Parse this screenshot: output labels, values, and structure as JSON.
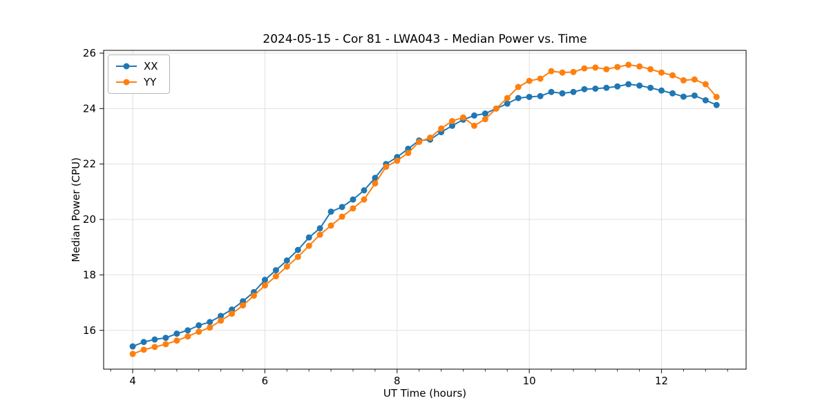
{
  "figure": {
    "background": "#ffffff"
  },
  "styles": {
    "grid_color": "#e0e0e0",
    "spine_color": "#000000",
    "tick_color": "#333333",
    "text_color": "#000000",
    "series_colors": [
      "#1f77b4",
      "#ff7f0e"
    ]
  },
  "legend": {
    "position": "upper-left",
    "entries": [
      "XX",
      "YY"
    ]
  },
  "chart_data": {
    "type": "line",
    "title": "2024-05-15 - Cor 81 - LWA043 - Median Power vs. Time",
    "xlabel": "UT Time (hours)",
    "ylabel": "Median Power (CPU)",
    "xlim": [
      3.56,
      13.28
    ],
    "ylim": [
      14.6,
      26.1
    ],
    "xticks": [
      4,
      6,
      8,
      10,
      12
    ],
    "yticks": [
      16,
      18,
      20,
      22,
      24,
      26
    ],
    "x_minor_step": 0.33333,
    "grid": true,
    "legend_position": "upper-left",
    "marker": "o",
    "x": [
      4.0,
      4.167,
      4.333,
      4.5,
      4.667,
      4.833,
      5.0,
      5.167,
      5.333,
      5.5,
      5.667,
      5.833,
      6.0,
      6.167,
      6.333,
      6.5,
      6.667,
      6.833,
      7.0,
      7.167,
      7.333,
      7.5,
      7.667,
      7.833,
      8.0,
      8.167,
      8.333,
      8.5,
      8.667,
      8.833,
      9.0,
      9.167,
      9.333,
      9.5,
      9.667,
      9.833,
      10.0,
      10.167,
      10.333,
      10.5,
      10.667,
      10.833,
      11.0,
      11.167,
      11.333,
      11.5,
      11.667,
      11.833,
      12.0,
      12.167,
      12.333,
      12.5,
      12.667,
      12.833
    ],
    "series": [
      {
        "name": "XX",
        "color": "#1f77b4",
        "values": [
          15.42,
          15.58,
          15.67,
          15.73,
          15.88,
          16.0,
          16.18,
          16.3,
          16.52,
          16.75,
          17.05,
          17.38,
          17.82,
          18.17,
          18.52,
          18.9,
          19.35,
          19.68,
          20.28,
          20.45,
          20.72,
          21.05,
          21.5,
          22.0,
          22.25,
          22.55,
          22.85,
          22.88,
          23.15,
          23.38,
          23.6,
          23.75,
          23.82,
          24.0,
          24.18,
          24.38,
          24.42,
          24.45,
          24.6,
          24.55,
          24.6,
          24.7,
          24.72,
          24.75,
          24.8,
          24.88,
          24.83,
          24.75,
          24.65,
          24.55,
          24.43,
          24.47,
          24.3,
          24.13
        ]
      },
      {
        "name": "YY",
        "color": "#ff7f0e",
        "values": [
          15.15,
          15.3,
          15.4,
          15.5,
          15.63,
          15.78,
          15.95,
          16.1,
          16.35,
          16.6,
          16.9,
          17.25,
          17.62,
          17.95,
          18.3,
          18.65,
          19.05,
          19.45,
          19.78,
          20.1,
          20.4,
          20.72,
          21.3,
          21.9,
          22.12,
          22.4,
          22.8,
          22.95,
          23.28,
          23.55,
          23.68,
          23.38,
          23.62,
          24.0,
          24.38,
          24.78,
          25.0,
          25.08,
          25.35,
          25.3,
          25.32,
          25.45,
          25.48,
          25.42,
          25.5,
          25.58,
          25.52,
          25.42,
          25.3,
          25.2,
          25.02,
          25.05,
          24.88,
          24.42
        ]
      }
    ]
  }
}
